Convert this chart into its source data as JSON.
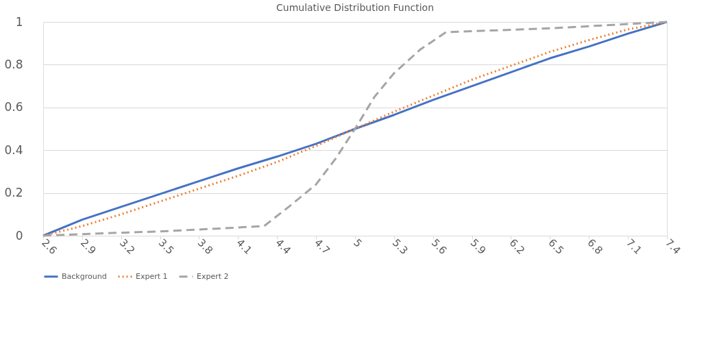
{
  "chart_data": {
    "type": "line",
    "title": "Cumulative Distribution Function",
    "xlim": [
      2.6,
      7.4
    ],
    "xticks": [
      2.6,
      2.9,
      3.2,
      3.5,
      3.8,
      4.1,
      4.4,
      4.7,
      5,
      5.3,
      5.6,
      5.9,
      6.2,
      6.5,
      6.8,
      7.1,
      7.4
    ],
    "ylim": [
      0,
      1
    ],
    "yticks": [
      0,
      0.2,
      0.4,
      0.6,
      0.8,
      1
    ],
    "grid": "y",
    "legend": "bottom",
    "marker": "none",
    "series": [
      {
        "name": "Background",
        "color": "#4472c4",
        "line_style": "solid",
        "x": [
          2.6,
          2.9,
          3.2,
          3.5,
          3.8,
          4.1,
          4.4,
          4.7,
          5.0,
          5.3,
          5.6,
          5.9,
          6.2,
          6.5,
          6.8,
          7.1,
          7.4
        ],
        "values": [
          0,
          0.075,
          0.135,
          0.195,
          0.255,
          0.315,
          0.37,
          0.43,
          0.5,
          0.565,
          0.635,
          0.7,
          0.765,
          0.83,
          0.885,
          0.945,
          1
        ]
      },
      {
        "name": "Expert 1",
        "color": "#ed7d31",
        "line_style": "dotted",
        "x": [
          2.6,
          2.9,
          3.2,
          3.5,
          3.8,
          4.1,
          4.4,
          4.7,
          5.0,
          5.3,
          5.6,
          5.9,
          6.2,
          6.5,
          6.8,
          7.1,
          7.4
        ],
        "values": [
          0,
          0.045,
          0.1,
          0.16,
          0.22,
          0.28,
          0.345,
          0.42,
          0.5,
          0.58,
          0.655,
          0.73,
          0.795,
          0.86,
          0.915,
          0.965,
          1
        ]
      },
      {
        "name": "Expert 2",
        "color": "#a5a5a5",
        "line_style": "dashed",
        "x": [
          2.6,
          3.0,
          3.5,
          4.0,
          4.3,
          4.5,
          4.7,
          4.85,
          5.0,
          5.15,
          5.3,
          5.5,
          5.7,
          6.5,
          7.4
        ],
        "values": [
          0,
          0.01,
          0.02,
          0.035,
          0.045,
          0.14,
          0.24,
          0.36,
          0.5,
          0.65,
          0.76,
          0.87,
          0.952,
          0.97,
          1
        ]
      }
    ]
  }
}
